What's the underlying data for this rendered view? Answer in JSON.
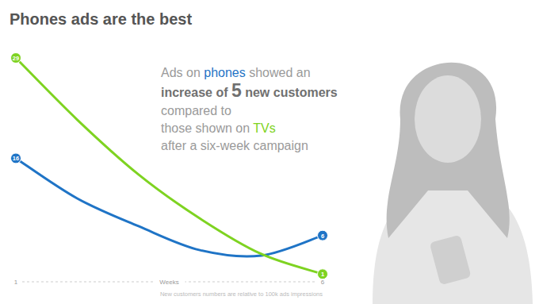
{
  "chart_data": {
    "type": "line",
    "title": "Phones ads are the best",
    "annotation": [
      [
        "Ads on ",
        "phones",
        " showed an"
      ],
      [
        "increase of ",
        "5",
        " new customers"
      ],
      [
        "compared to"
      ],
      [
        "those shown on ",
        "TVs"
      ],
      [
        "after a six-week campaign"
      ]
    ],
    "xlabel": "Weeks",
    "footnote": "New customers numbers are relative to 100k ads impressions",
    "x": [
      1,
      2,
      3,
      4,
      5,
      6
    ],
    "xlim": [
      1,
      6
    ],
    "xticks": [
      1,
      6
    ],
    "ylim": [
      0,
      29
    ],
    "tick_labels": "x",
    "grid": false,
    "data_labels": true,
    "series": [
      {
        "name": "phones",
        "color": "#1f74c6",
        "marker": "circle",
        "values": [
          16,
          10.8,
          7.2,
          4.1,
          3.4,
          6
        ],
        "value_labels": [
          "16",
          null,
          null,
          null,
          null,
          "6"
        ]
      },
      {
        "name": "TVs",
        "color": "#7ed321",
        "marker": "circle",
        "values": [
          29,
          21,
          13.9,
          8.2,
          3.6,
          1
        ],
        "value_labels": [
          "29",
          null,
          null,
          null,
          null,
          "1"
        ]
      }
    ]
  }
}
